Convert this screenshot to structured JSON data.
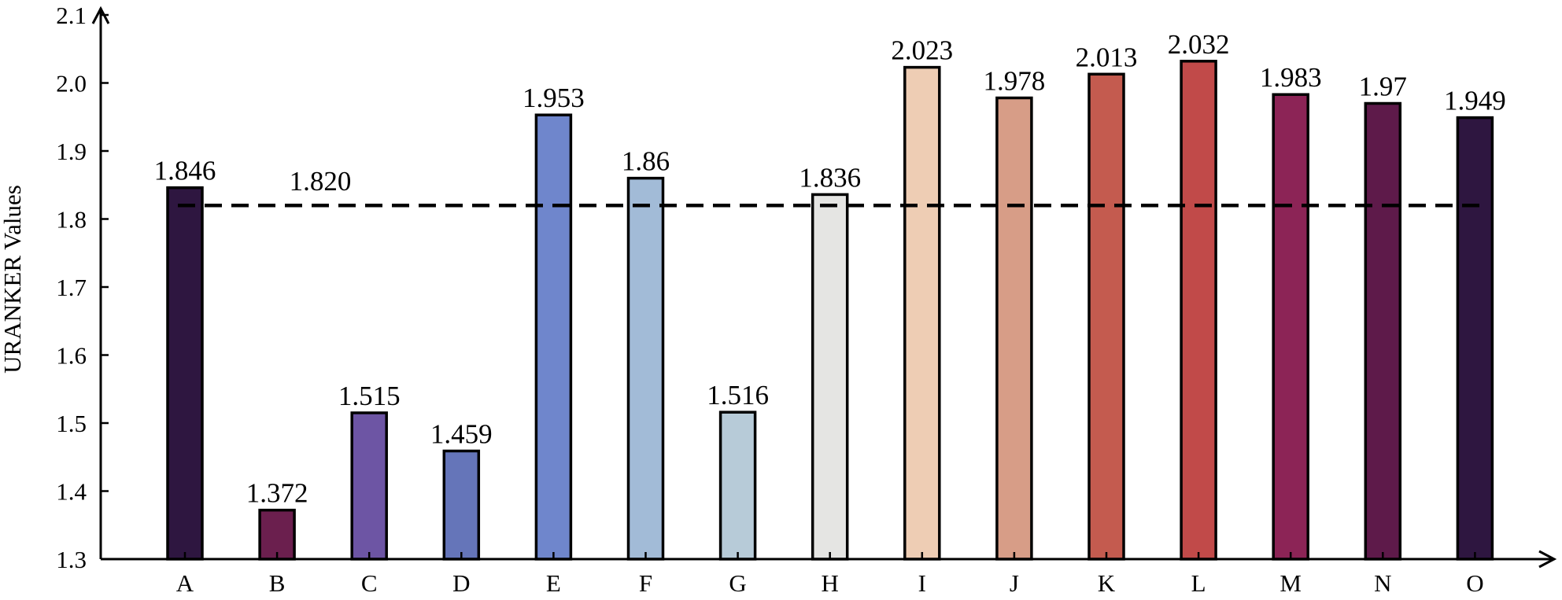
{
  "chart_data": {
    "type": "bar",
    "ylabel": "URANKER Values",
    "xlabel": "",
    "ylim": [
      1.3,
      2.1
    ],
    "yticks": [
      "1.3",
      "1.4",
      "1.5",
      "1.6",
      "1.7",
      "1.8",
      "1.9",
      "2.0",
      "2.1"
    ],
    "categories": [
      "A",
      "B",
      "C",
      "D",
      "E",
      "F",
      "G",
      "H",
      "I",
      "J",
      "K",
      "L",
      "M",
      "N",
      "O"
    ],
    "values": [
      1.846,
      1.372,
      1.515,
      1.459,
      1.953,
      1.86,
      1.516,
      1.836,
      2.023,
      1.978,
      2.013,
      2.032,
      1.983,
      1.97,
      1.949
    ],
    "data_labels": [
      "1.846",
      "1.372",
      "1.515",
      "1.459",
      "1.953",
      "1.86",
      "1.516",
      "1.836",
      "2.023",
      "1.978",
      "2.013",
      "2.032",
      "1.983",
      "1.97",
      "1.949"
    ],
    "bar_colors": [
      "#2e1640",
      "#6b1f4e",
      "#6d55a4",
      "#6575b9",
      "#6f86cc",
      "#a2bbd7",
      "#b7cbd8",
      "#e5e5e3",
      "#eecdb4",
      "#d79d87",
      "#c45b4f",
      "#c14a49",
      "#8c2456",
      "#5e1a4a",
      "#2e1640"
    ],
    "label_colors": [
      "#000000",
      "#000000",
      "#000000",
      "#000000",
      "#000000",
      "#000000",
      "#000000",
      "#000000",
      "#5a70b4",
      "#000000",
      "#000000",
      "#c0504d",
      "#000000",
      "#000000",
      "#000000"
    ],
    "reference_line": {
      "value": 1.82,
      "label": "1.820",
      "style": "dashed",
      "color": "#000000"
    },
    "grid": false,
    "legend": "none"
  }
}
